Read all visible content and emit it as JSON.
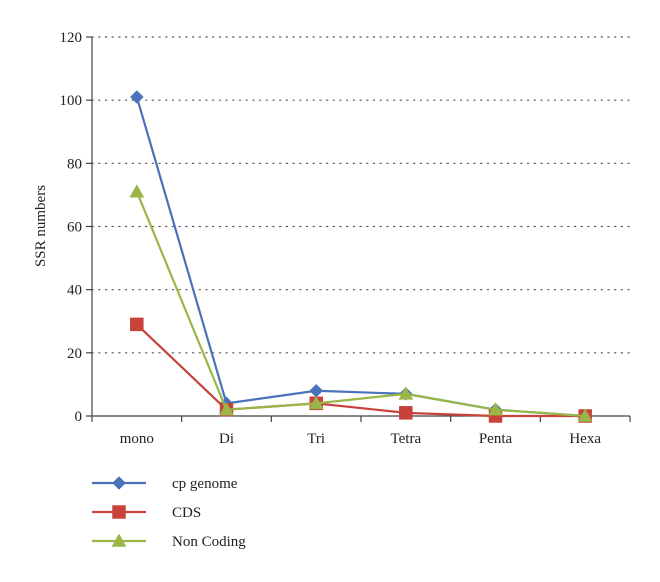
{
  "chart_data": {
    "type": "line",
    "title": "",
    "xlabel": "",
    "ylabel": "SSR numbers",
    "ylim": [
      0,
      120
    ],
    "yticks": [
      0,
      20,
      40,
      60,
      80,
      100,
      120
    ],
    "grid": "horizontal-dotted",
    "legend_position": "bottom-left",
    "categories": [
      "mono",
      "Di",
      "Tri",
      "Tetra",
      "Penta",
      "Hexa"
    ],
    "series": [
      {
        "name": "cp genome",
        "values": [
          101,
          4,
          8,
          7,
          2,
          0
        ],
        "color": "#4a72bb",
        "marker": "diamond"
      },
      {
        "name": "CDS",
        "values": [
          29,
          2,
          4,
          1,
          0,
          0
        ],
        "color": "#c8423c",
        "marker": "square"
      },
      {
        "name": "Non Coding",
        "values": [
          71,
          2,
          4,
          7,
          2,
          0
        ],
        "color": "#98b747",
        "marker": "triangle"
      }
    ]
  }
}
